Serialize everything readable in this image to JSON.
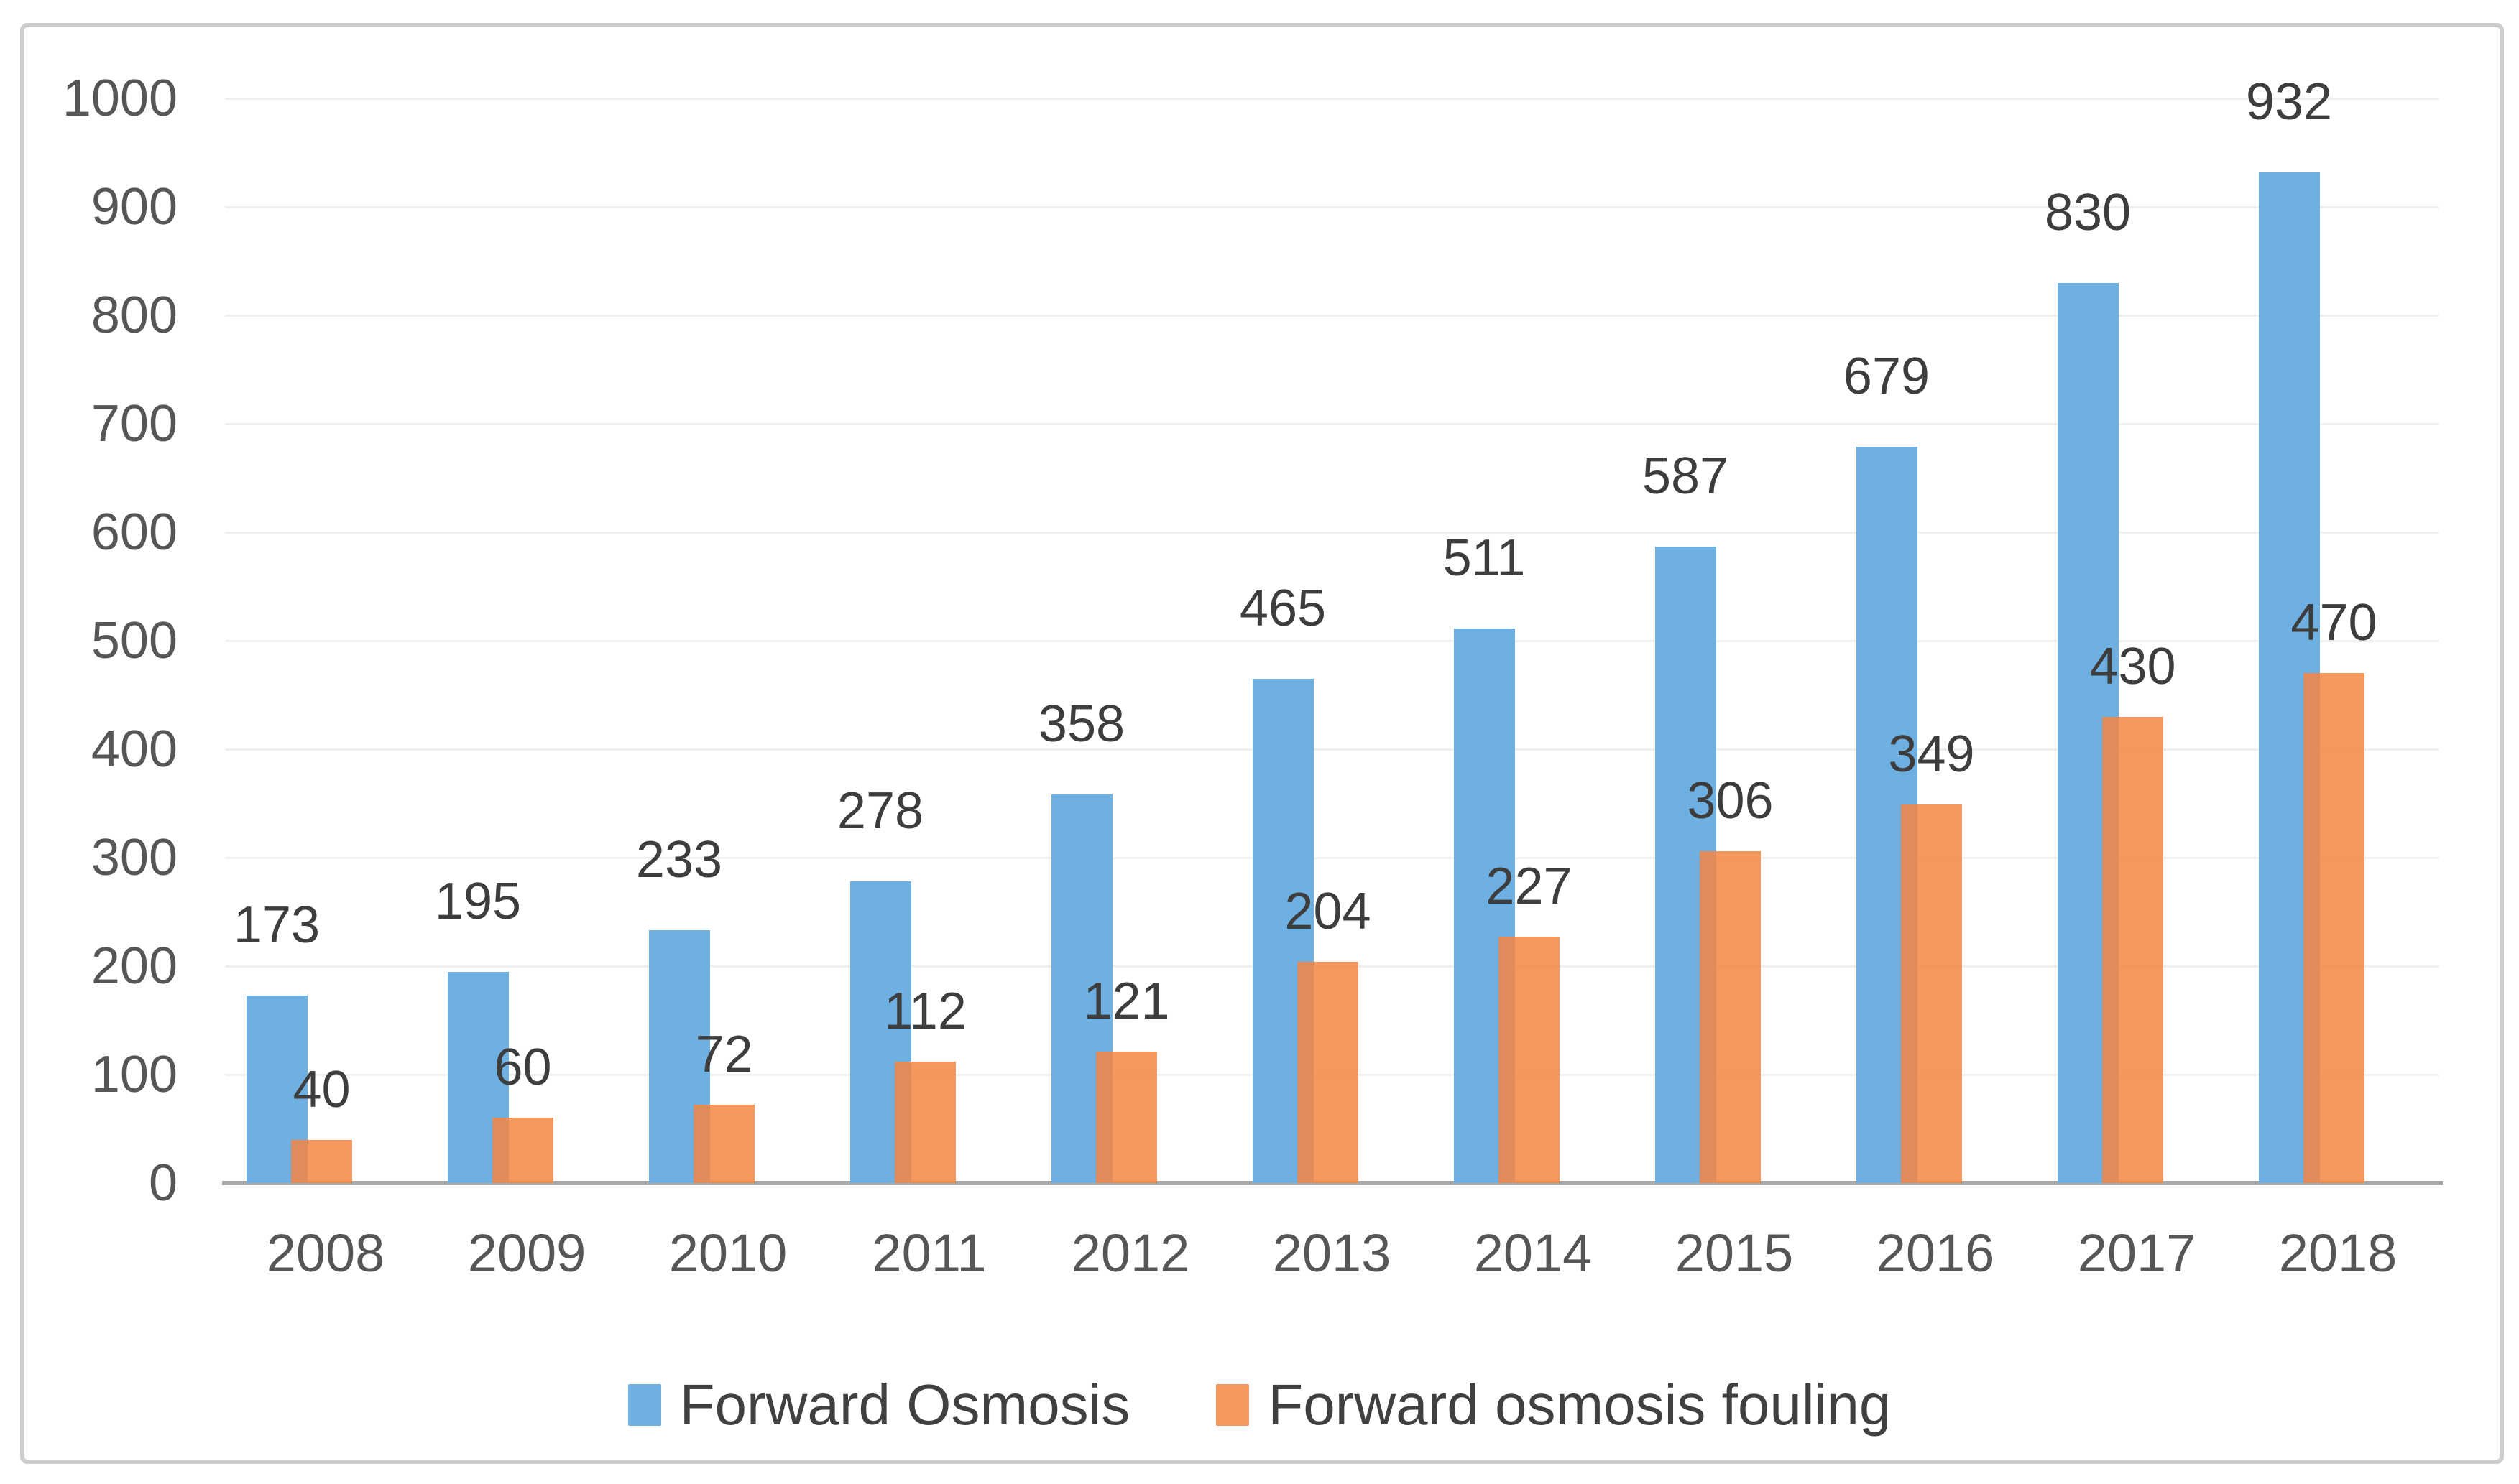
{
  "chart_data": {
    "type": "bar",
    "title": "",
    "xlabel": "",
    "ylabel": "",
    "categories": [
      "2008",
      "2009",
      "2010",
      "2011",
      "2012",
      "2013",
      "2014",
      "2015",
      "2016",
      "2017",
      "2018"
    ],
    "series": [
      {
        "name": "Forward Osmosis",
        "color": "#6fb0e2",
        "values": [
          173,
          195,
          233,
          278,
          358,
          465,
          511,
          587,
          679,
          830,
          932
        ]
      },
      {
        "name": "Forward osmosis fouling",
        "color": "#f38642",
        "fill_opacity": 0.85,
        "values": [
          40,
          60,
          72,
          112,
          121,
          204,
          227,
          306,
          349,
          430,
          470
        ]
      }
    ],
    "yticks": [
      "0",
      "100",
      "200",
      "300",
      "400",
      "500",
      "600",
      "700",
      "800",
      "900",
      "1000"
    ],
    "ylim": [
      0,
      1000
    ],
    "ytick_step": 100,
    "grid": true,
    "bar_overlap": true,
    "data_labels": "outside-end",
    "legend_position": "bottom",
    "colors": {
      "gridline": "#efefef",
      "axis_line": "#a9a9a9",
      "figure_border": "#cdcdcd",
      "tick_label": "#565656",
      "data_label": "#3d3d3d",
      "legend_label": "#404040",
      "background": "#ffffff"
    }
  }
}
